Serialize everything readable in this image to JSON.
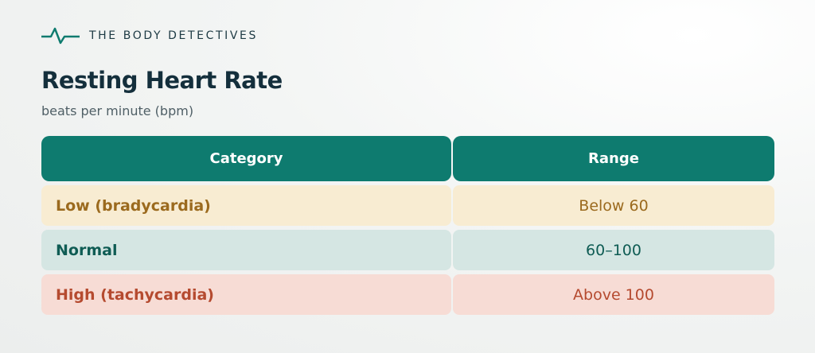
{
  "brand": "THE BODY DETECTIVES",
  "header": {
    "title": "Resting Heart Rate",
    "subtitle": "beats per minute (bpm)"
  },
  "table": {
    "columns": [
      "Category",
      "Range"
    ],
    "rows": [
      [
        "Low (bradycardia)",
        "Below 60"
      ],
      [
        "Normal",
        "60–100"
      ],
      [
        "High (tachycardia)",
        "Above 100"
      ]
    ]
  }
}
